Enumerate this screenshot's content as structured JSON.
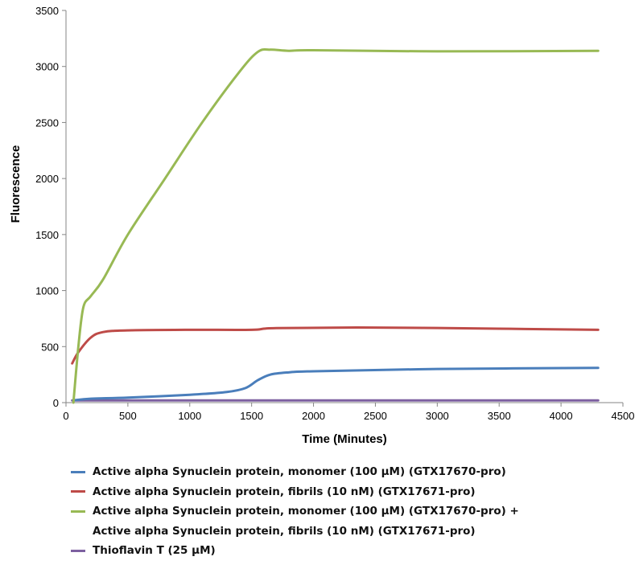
{
  "chart_data": {
    "type": "line",
    "title": "",
    "xlabel": "Time (Minutes)",
    "ylabel": "Fluorescence",
    "xlim": [
      0,
      4500
    ],
    "ylim": [
      0,
      3500
    ],
    "xticks": [
      0,
      500,
      1000,
      1500,
      2000,
      2500,
      3000,
      3500,
      4000,
      4500
    ],
    "yticks": [
      0,
      500,
      1000,
      1500,
      2000,
      2500,
      3000,
      3500
    ],
    "grid": false,
    "legend_position": "bottom",
    "series": [
      {
        "name": "Active alpha Synuclein protein, monomer (100 µM) (GTX17670-pro)",
        "color": "#4a7ebb",
        "points": [
          [
            60,
            20
          ],
          [
            200,
            35
          ],
          [
            500,
            45
          ],
          [
            1000,
            70
          ],
          [
            1300,
            95
          ],
          [
            1450,
            130
          ],
          [
            1550,
            200
          ],
          [
            1650,
            250
          ],
          [
            1800,
            270
          ],
          [
            2000,
            280
          ],
          [
            3000,
            300
          ],
          [
            4300,
            310
          ]
        ]
      },
      {
        "name": "Active alpha Synuclein protein, fibrils (10 nM) (GTX17671-pro)",
        "color": "#be4b48",
        "points": [
          [
            50,
            350
          ],
          [
            100,
            450
          ],
          [
            200,
            580
          ],
          [
            300,
            630
          ],
          [
            500,
            645
          ],
          [
            1000,
            650
          ],
          [
            1500,
            650
          ],
          [
            1700,
            665
          ],
          [
            2500,
            670
          ],
          [
            3500,
            660
          ],
          [
            4300,
            650
          ]
        ]
      },
      {
        "name": "Active alpha Synuclein protein, monomer (100 µM) (GTX17670-pro) +",
        "name_line2": "Active alpha Synuclein protein, fibrils (10 nM) (GTX17671-pro)",
        "color": "#98b954",
        "points": [
          [
            60,
            0
          ],
          [
            100,
            500
          ],
          [
            140,
            850
          ],
          [
            200,
            950
          ],
          [
            300,
            1100
          ],
          [
            500,
            1500
          ],
          [
            800,
            2000
          ],
          [
            1100,
            2500
          ],
          [
            1400,
            2950
          ],
          [
            1550,
            3130
          ],
          [
            1650,
            3150
          ],
          [
            1800,
            3140
          ],
          [
            2000,
            3145
          ],
          [
            3000,
            3135
          ],
          [
            4300,
            3140
          ]
        ]
      },
      {
        "name": "Thioflavin T (25 µM)",
        "color": "#7d60a0",
        "points": [
          [
            50,
            20
          ],
          [
            1000,
            20
          ],
          [
            2000,
            20
          ],
          [
            4300,
            20
          ]
        ]
      }
    ]
  }
}
